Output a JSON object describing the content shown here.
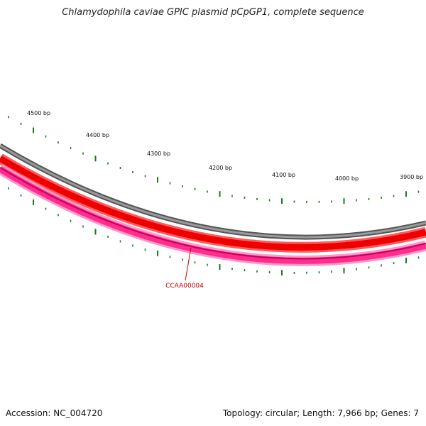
{
  "title": "Chlamydophila caviae GPIC plasmid pCpGP1, complete sequence",
  "accession_text": "Accession: NC_004720",
  "summary_text": "Topology: circular; Length: 7,966 bp; Genes: 7",
  "colors": {
    "ticks": "#1a7a1a",
    "gray_ring": "#808080",
    "red_ring": "#ff0000",
    "pink_ring": "#ff3399",
    "gene_label": "#cc0000"
  },
  "scale_labels": [
    "4500 bp",
    "4400 bp",
    "4300 bp",
    "4200 bp",
    "4100 bp",
    "4000 bp",
    "3900 bp"
  ],
  "gene_label": "CCAA00004"
}
